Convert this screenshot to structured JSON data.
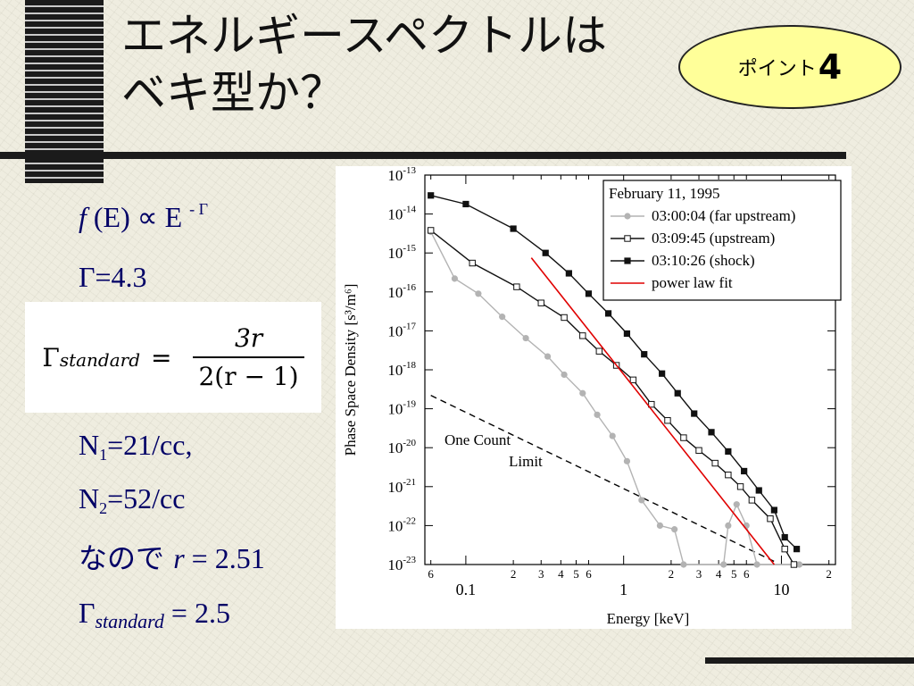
{
  "slide": {
    "title_line1": "エネルギースペクトルは",
    "title_line2": "ベキ型か？",
    "badge": {
      "label": "ポイント",
      "number": "4"
    }
  },
  "left_panel": {
    "eq1": {
      "f": "f",
      "arg": " (E) ∝ E ",
      "exp": "- Γ"
    },
    "eq2": "Γ=4.3",
    "formula": {
      "lhs": "Γ",
      "sub": "standard",
      "eq": "=",
      "num": "3r",
      "den": "2(r − 1)"
    },
    "n1": {
      "base": "N",
      "sub": "1",
      "rest": "=21/cc,"
    },
    "n2": {
      "base": "N",
      "sub": "2",
      "rest": "=52/cc"
    },
    "r_line": {
      "jp": "なので ",
      "var": "r",
      "rest": " = 2.51"
    },
    "gamma_std": {
      "base": "Γ",
      "sub": "standard",
      "rest": " = 2.5"
    }
  },
  "chart_data": {
    "type": "line",
    "xlabel": "Energy [keV]",
    "ylabel": "Phase Space Density [s³/m⁶]",
    "x_scale": "log",
    "y_scale": "log",
    "xlim": [
      0.055,
      22
    ],
    "ylim": [
      1e-23,
      1e-13
    ],
    "x_major_ticks": [
      {
        "value": 0.1,
        "label": "0.1"
      },
      {
        "value": 1,
        "label": "1"
      },
      {
        "value": 10,
        "label": "10"
      }
    ],
    "x_minor_ticks": [
      {
        "value": 0.06,
        "label": "6"
      },
      {
        "value": 0.2,
        "label": "2"
      },
      {
        "value": 0.3,
        "label": "3"
      },
      {
        "value": 0.4,
        "label": "4"
      },
      {
        "value": 0.5,
        "label": "5"
      },
      {
        "value": 0.6,
        "label": "6"
      },
      {
        "value": 2,
        "label": "2"
      },
      {
        "value": 3,
        "label": "3"
      },
      {
        "value": 4,
        "label": "4"
      },
      {
        "value": 5,
        "label": "5"
      },
      {
        "value": 6,
        "label": "6"
      },
      {
        "value": 20,
        "label": "2"
      }
    ],
    "y_ticks": [
      {
        "value": 1e-13,
        "base": "10",
        "exp": "-13"
      },
      {
        "value": 1e-14,
        "base": "10",
        "exp": "-14"
      },
      {
        "value": 1e-15,
        "base": "10",
        "exp": "-15"
      },
      {
        "value": 1e-16,
        "base": "10",
        "exp": "-16"
      },
      {
        "value": 1e-17,
        "base": "10",
        "exp": "-17"
      },
      {
        "value": 1e-18,
        "base": "10",
        "exp": "-18"
      },
      {
        "value": 1e-19,
        "base": "10",
        "exp": "-19"
      },
      {
        "value": 1e-20,
        "base": "10",
        "exp": "-20"
      },
      {
        "value": 1e-21,
        "base": "10",
        "exp": "-21"
      },
      {
        "value": 1e-22,
        "base": "10",
        "exp": "-22"
      },
      {
        "value": 1e-23,
        "base": "10",
        "exp": "-23"
      }
    ],
    "legend_title": "February 11, 1995",
    "legend_position": "top-right",
    "series": [
      {
        "name": "03:00:04 (far upstream)",
        "color": "#b3b3b3",
        "marker": "circle-filled",
        "points": [
          [
            0.06,
            3.5e-15
          ],
          [
            0.085,
            2.2e-16
          ],
          [
            0.12,
            9e-17
          ],
          [
            0.17,
            2.3e-17
          ],
          [
            0.24,
            6.5e-18
          ],
          [
            0.33,
            2.2e-18
          ],
          [
            0.42,
            7.5e-19
          ],
          [
            0.55,
            2.5e-19
          ],
          [
            0.68,
            7e-20
          ],
          [
            0.85,
            2e-20
          ],
          [
            1.05,
            4.5e-21
          ],
          [
            1.3,
            4.5e-22
          ],
          [
            1.7,
            1e-22
          ],
          [
            2.1,
            8e-23
          ],
          [
            2.4,
            1e-23
          ],
          [
            4.3,
            1e-23
          ],
          [
            4.6,
            1e-22
          ],
          [
            5.2,
            3.5e-22
          ],
          [
            6.0,
            1e-22
          ],
          [
            7.0,
            1e-23
          ],
          [
            13.0,
            1e-23
          ]
        ]
      },
      {
        "name": "03:09:45 (upstream)",
        "color": "#111111",
        "marker": "square-open",
        "points": [
          [
            0.06,
            3.8e-15
          ],
          [
            0.11,
            5.5e-16
          ],
          [
            0.21,
            1.35e-16
          ],
          [
            0.3,
            5.2e-17
          ],
          [
            0.42,
            2.2e-17
          ],
          [
            0.55,
            7.5e-18
          ],
          [
            0.7,
            3e-18
          ],
          [
            0.9,
            1.3e-18
          ],
          [
            1.15,
            5.5e-19
          ],
          [
            1.5,
            1.3e-19
          ],
          [
            1.9,
            5e-20
          ],
          [
            2.4,
            1.8e-20
          ],
          [
            3.0,
            8.5e-21
          ],
          [
            3.8,
            4e-21
          ],
          [
            4.6,
            2e-21
          ],
          [
            5.5,
            1e-21
          ],
          [
            6.5,
            4.5e-22
          ],
          [
            8.5,
            1.5e-22
          ],
          [
            10.5,
            2.5e-23
          ],
          [
            12.0,
            1e-23
          ]
        ]
      },
      {
        "name": "03:10:26 (shock)",
        "color": "#111111",
        "marker": "square-filled",
        "points": [
          [
            0.06,
            3e-14
          ],
          [
            0.1,
            1.8e-14
          ],
          [
            0.2,
            4.2e-15
          ],
          [
            0.32,
            1e-15
          ],
          [
            0.45,
            3e-16
          ],
          [
            0.6,
            9e-17
          ],
          [
            0.8,
            2.8e-17
          ],
          [
            1.05,
            8.5e-18
          ],
          [
            1.35,
            2.5e-18
          ],
          [
            1.75,
            8e-19
          ],
          [
            2.2,
            2.5e-19
          ],
          [
            2.8,
            7.5e-20
          ],
          [
            3.6,
            2.5e-20
          ],
          [
            4.6,
            8e-21
          ],
          [
            5.8,
            2.5e-21
          ],
          [
            7.2,
            8e-22
          ],
          [
            9.0,
            2.5e-22
          ],
          [
            10.5,
            5e-23
          ],
          [
            12.5,
            2.5e-23
          ]
        ]
      },
      {
        "name": "power law fit",
        "color": "#e00000",
        "marker": "none",
        "points": [
          [
            0.26,
            7.5e-16
          ],
          [
            9.0,
            1e-23
          ]
        ]
      }
    ],
    "reference_lines": [
      {
        "style": "dashed",
        "points": [
          [
            0.06,
            2.2e-19
          ],
          [
            9.0,
            1.2e-23
          ]
        ]
      }
    ],
    "annotations": [
      "One Count",
      "Limit"
    ]
  }
}
